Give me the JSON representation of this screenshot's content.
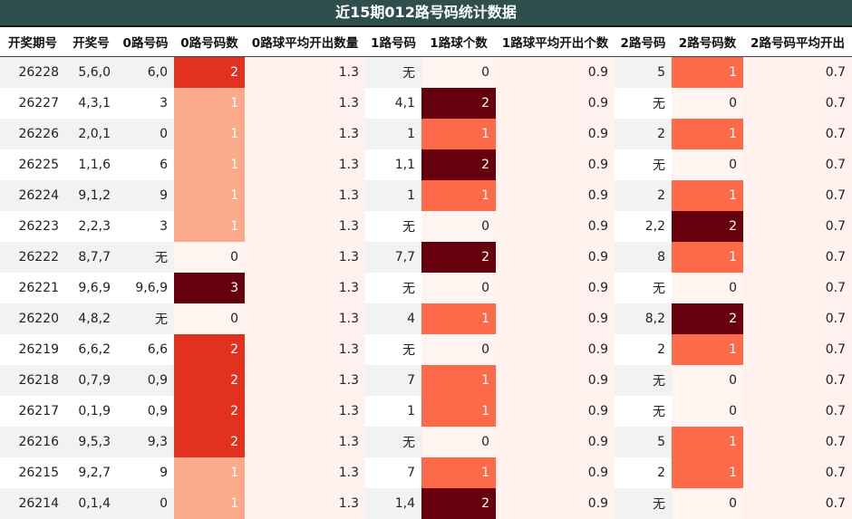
{
  "title": "近15期012路号码统计数据",
  "columns": [
    "开奖期号",
    "开奖号",
    "0路号码",
    "0路号码数",
    "0路球平均开出数量",
    "1路号码",
    "1路球个数",
    "1路球平均开出个数",
    "2路号码",
    "2路号码数",
    "2路号码平均开出"
  ],
  "rows": [
    [
      "26228",
      "5,6,0",
      "6,0",
      "2",
      "1.3",
      "无",
      "0",
      "0.9",
      "5",
      "1",
      "0.7"
    ],
    [
      "26227",
      "4,3,1",
      "3",
      "1",
      "1.3",
      "4,1",
      "2",
      "0.9",
      "无",
      "0",
      "0.7"
    ],
    [
      "26226",
      "2,0,1",
      "0",
      "1",
      "1.3",
      "1",
      "1",
      "0.9",
      "2",
      "1",
      "0.7"
    ],
    [
      "26225",
      "1,1,6",
      "6",
      "1",
      "1.3",
      "1,1",
      "2",
      "0.9",
      "无",
      "0",
      "0.7"
    ],
    [
      "26224",
      "9,1,2",
      "9",
      "1",
      "1.3",
      "1",
      "1",
      "0.9",
      "2",
      "1",
      "0.7"
    ],
    [
      "26223",
      "2,2,3",
      "3",
      "1",
      "1.3",
      "无",
      "0",
      "0.9",
      "2,2",
      "2",
      "0.7"
    ],
    [
      "26222",
      "8,7,7",
      "无",
      "0",
      "1.3",
      "7,7",
      "2",
      "0.9",
      "8",
      "1",
      "0.7"
    ],
    [
      "26221",
      "9,6,9",
      "9,6,9",
      "3",
      "1.3",
      "无",
      "0",
      "0.9",
      "无",
      "0",
      "0.7"
    ],
    [
      "26220",
      "4,8,2",
      "无",
      "0",
      "1.3",
      "4",
      "1",
      "0.9",
      "8,2",
      "2",
      "0.7"
    ],
    [
      "26219",
      "6,6,2",
      "6,6",
      "2",
      "1.3",
      "无",
      "0",
      "0.9",
      "2",
      "1",
      "0.7"
    ],
    [
      "26218",
      "0,7,9",
      "0,9",
      "2",
      "1.3",
      "7",
      "1",
      "0.9",
      "无",
      "0",
      "0.7"
    ],
    [
      "26217",
      "0,1,9",
      "0,9",
      "2",
      "1.3",
      "1",
      "1",
      "0.9",
      "无",
      "0",
      "0.7"
    ],
    [
      "26216",
      "9,5,3",
      "9,3",
      "2",
      "1.3",
      "无",
      "0",
      "0.9",
      "5",
      "1",
      "0.7"
    ],
    [
      "26215",
      "9,2,7",
      "9",
      "1",
      "1.3",
      "7",
      "1",
      "0.9",
      "2",
      "1",
      "0.7"
    ],
    [
      "26214",
      "0,1,4",
      "0",
      "1",
      "1.3",
      "1,4",
      "2",
      "0.9",
      "无",
      "0",
      "0.7"
    ]
  ]
}
